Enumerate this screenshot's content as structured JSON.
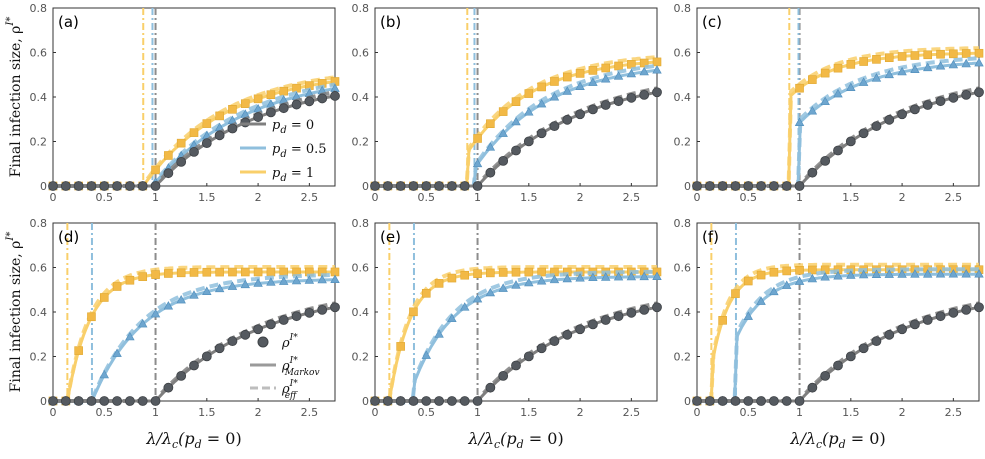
{
  "chart_data": {
    "type": "line",
    "colors": {
      "pd0": "#7f7f7f",
      "pd05": "#8fbfdd",
      "pd1": "#f9cf6a",
      "marker0": "#555a60",
      "marker05": "#6ea6cf",
      "marker1": "#f2b946"
    },
    "ylabel": "Final infection size, ρ",
    "ylabel_sup": "I*",
    "xlabel": "λ/λc(pd = 0)",
    "xlabel_parts": {
      "lam": "λ/λ",
      "sub": "c",
      "paren": "(p",
      "sub_d": "d",
      "tail": " = 0)"
    },
    "xlim": [
      0,
      2.75
    ],
    "ylim": [
      0,
      0.8
    ],
    "xticks": [
      0,
      0.5,
      1,
      1.5,
      2,
      2.5
    ],
    "xtick_labels": [
      "0",
      "0.5",
      "1",
      "1.5",
      "2",
      "2.5"
    ],
    "yticks": [
      0.2,
      0.4,
      0.6,
      0.8
    ],
    "ytick_labels": [
      "0.2",
      "0.4",
      "0.6",
      "0.8"
    ],
    "y0_label": "0",
    "legend_pd": [
      {
        "series": "pd0",
        "text": "p",
        "sub": "d",
        "tail": " = 0"
      },
      {
        "series": "pd05",
        "text": "p",
        "sub": "d",
        "tail": " = 0.5"
      },
      {
        "series": "pd1",
        "text": "p",
        "sub": "d",
        "tail": " = 1"
      }
    ],
    "legend_styles": [
      {
        "kind": "marker",
        "text": "ρ",
        "sup": "I*"
      },
      {
        "kind": "solid",
        "text": "ρ",
        "sup": "I*",
        "sub": "Markov"
      },
      {
        "kind": "dashed",
        "text": "ρ",
        "sup": "I*",
        "sub": "eff"
      }
    ],
    "panels": [
      {
        "label": "(a)",
        "thresholds": {
          "pd0": 1.0,
          "pd05": 0.97,
          "pd1": 0.88
        },
        "sat": {
          "pd0": 0.49,
          "pd05": 0.51,
          "pd1": 0.52
        },
        "ks": {
          "pd0": 1.0,
          "pd05": 1.1,
          "pd1": 1.25
        },
        "jump": {
          "pd0": 0,
          "pd05": 0,
          "pd1": 0
        }
      },
      {
        "label": "(b)",
        "thresholds": {
          "pd0": 1.0,
          "pd05": 0.97,
          "pd1": 0.9
        },
        "sat": {
          "pd0": 0.51,
          "pd05": 0.56,
          "pd1": 0.58
        },
        "ks": {
          "pd0": 1.0,
          "pd05": 1.4,
          "pd1": 1.6
        },
        "jump": {
          "pd0": 0,
          "pd05": 0.08,
          "pd1": 0.15
        }
      },
      {
        "label": "(c)",
        "thresholds": {
          "pd0": 1.0,
          "pd05": 0.99,
          "pd1": 0.9
        },
        "sat": {
          "pd0": 0.51,
          "pd05": 0.57,
          "pd1": 0.6
        },
        "ks": {
          "pd0": 1.0,
          "pd05": 1.6,
          "pd1": 2.2
        },
        "jump": {
          "pd0": 0,
          "pd05": 0.28,
          "pd1": 0.4
        }
      },
      {
        "label": "(d)",
        "thresholds": {
          "pd0": 1.0,
          "pd05": 0.38,
          "pd1": 0.14
        },
        "sat": {
          "pd0": 0.51,
          "pd05": 0.55,
          "pd1": 0.58
        },
        "ks": {
          "pd0": 1.0,
          "pd05": 2.0,
          "pd1": 4.5
        },
        "jump": {
          "pd0": 0,
          "pd05": 0,
          "pd1": 0
        }
      },
      {
        "label": "(e)",
        "thresholds": {
          "pd0": 1.0,
          "pd05": 0.38,
          "pd1": 0.14
        },
        "sat": {
          "pd0": 0.51,
          "pd05": 0.56,
          "pd1": 0.58
        },
        "ks": {
          "pd0": 1.0,
          "pd05": 2.5,
          "pd1": 5.0
        },
        "jump": {
          "pd0": 0,
          "pd05": 0.08,
          "pd1": 0
        }
      },
      {
        "label": "(f)",
        "thresholds": {
          "pd0": 1.0,
          "pd05": 0.38,
          "pd1": 0.14
        },
        "sat": {
          "pd0": 0.51,
          "pd05": 0.57,
          "pd1": 0.59
        },
        "ks": {
          "pd0": 1.0,
          "pd05": 3.5,
          "pd1": 6.0
        },
        "jump": {
          "pd0": 0,
          "pd05": 0.28,
          "pd1": 0.15
        }
      }
    ]
  }
}
